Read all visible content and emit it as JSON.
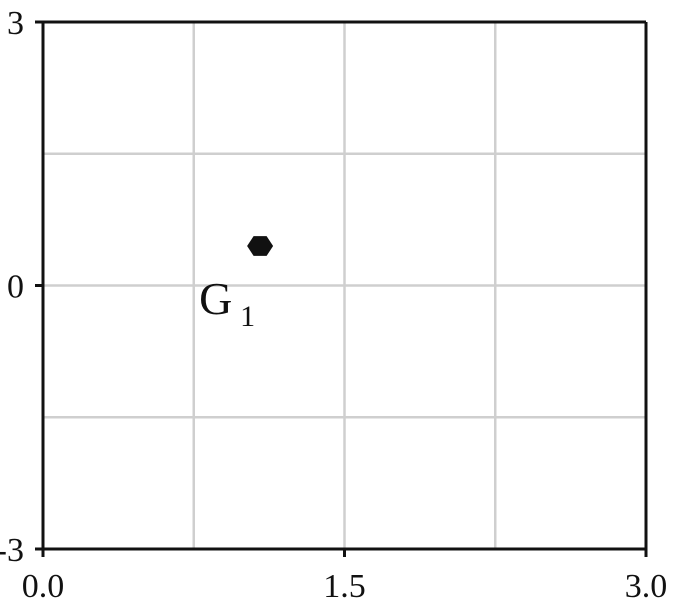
{
  "chart_data": {
    "type": "scatter",
    "title": "",
    "xlabel": "",
    "ylabel": "",
    "xlim": [
      0.0,
      3.0
    ],
    "ylim": [
      -3,
      3
    ],
    "grid": true,
    "x_ticks": [
      {
        "value": 0.0,
        "label": "0.0"
      },
      {
        "value": 1.5,
        "label": "1.5"
      },
      {
        "value": 3.0,
        "label": "3.0"
      }
    ],
    "y_ticks": [
      {
        "value": 3,
        "label": "3"
      },
      {
        "value": 0,
        "label": "0"
      },
      {
        "value": -3,
        "label": "-3"
      }
    ],
    "x_grid": [
      0.75,
      1.5,
      2.25
    ],
    "y_grid": [
      1.5,
      0,
      -1.5
    ],
    "points": [
      {
        "x": 1.08,
        "y": 0.45,
        "label": "G",
        "subscript": "1",
        "marker": "hexagon"
      }
    ]
  },
  "colors": {
    "grid": "#cfcfcf",
    "axis": "#111111",
    "point": "#111111"
  }
}
